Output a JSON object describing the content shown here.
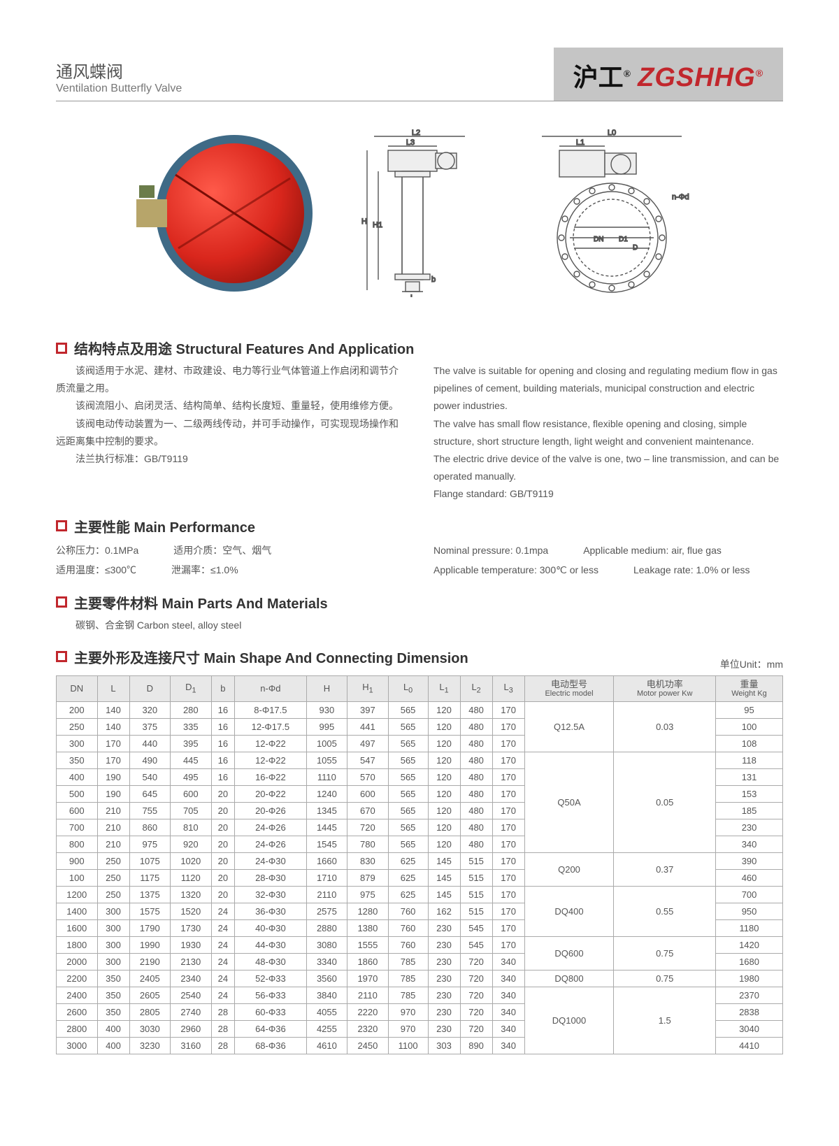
{
  "header": {
    "cn_title": "通风蝶阀",
    "en_title": "Ventilation Butterfly Valve",
    "logo_cn": "沪工",
    "logo_en": "ZGSHHG"
  },
  "sections": {
    "s1_title": "结构特点及用途 Structural Features And Application",
    "s2_title": "主要性能 Main Performance",
    "s3_title": "主要零件材料 Main Parts And Materials",
    "s4_title": "主要外形及连接尺寸 Main Shape And Connecting Dimension"
  },
  "s1": {
    "cn1": "该阀适用于水泥、建材、市政建设、电力等行业气体管道上作启闭和调节介质流量之用。",
    "cn2": "该阀流阻小、启闭灵活、结构简单、结构长度短、重量轻，使用维修方便。",
    "cn3": "该阀电动传动装置为一、二级两线传动，并可手动操作，可实现现场操作和远距离集中控制的要求。",
    "cn4": "法兰执行标准：GB/T9119",
    "en1": "The valve is suitable for opening and closing and regulating medium flow in gas pipelines of cement, building materials, municipal construction and electric power industries.",
    "en2": "The valve has small flow resistance, flexible opening and closing, simple structure, short structure length, light weight and convenient maintenance.",
    "en3": "The electric drive device of the valve is one, two – line transmission, and can be operated manually.",
    "en4": "Flange standard: GB/T9119"
  },
  "s2": {
    "cn_np": "公称压力：0.1MPa",
    "cn_med": "适用介质：空气、烟气",
    "cn_temp": "适用温度：≤300℃",
    "cn_leak": "泄漏率：≤1.0%",
    "en_np": "Nominal pressure: 0.1mpa",
    "en_med": "Applicable medium: air, flue gas",
    "en_temp": "Applicable temperature: 300℃ or less",
    "en_leak": "Leakage rate: 1.0% or less"
  },
  "s3": {
    "text": "碳钢、合金钢 Carbon steel, alloy steel"
  },
  "unit_label": "单位Unit：mm",
  "table": {
    "columns": [
      "DN",
      "L",
      "D",
      "D1",
      "b",
      "n-Φd",
      "H",
      "H1",
      "L0",
      "L1",
      "L2",
      "L3",
      "电动型号",
      "电机功率",
      "重量"
    ],
    "col_subs": [
      "",
      "",
      "",
      "",
      "",
      "",
      "",
      "",
      "",
      "",
      "",
      "",
      "Electric\nmodel",
      "Motor\npower Kw",
      "Weight\nKg"
    ],
    "rows": [
      [
        "200",
        "140",
        "320",
        "280",
        "16",
        "8-Φ17.5",
        "930",
        "397",
        "565",
        "120",
        "480",
        "170",
        null,
        null,
        "95"
      ],
      [
        "250",
        "140",
        "375",
        "335",
        "16",
        "12-Φ17.5",
        "995",
        "441",
        "565",
        "120",
        "480",
        "170",
        null,
        null,
        "100"
      ],
      [
        "300",
        "170",
        "440",
        "395",
        "16",
        "12-Φ22",
        "1005",
        "497",
        "565",
        "120",
        "480",
        "170",
        null,
        null,
        "108"
      ],
      [
        "350",
        "170",
        "490",
        "445",
        "16",
        "12-Φ22",
        "1055",
        "547",
        "565",
        "120",
        "480",
        "170",
        null,
        null,
        "118"
      ],
      [
        "400",
        "190",
        "540",
        "495",
        "16",
        "16-Φ22",
        "1110",
        "570",
        "565",
        "120",
        "480",
        "170",
        null,
        null,
        "131"
      ],
      [
        "500",
        "190",
        "645",
        "600",
        "20",
        "20-Φ22",
        "1240",
        "600",
        "565",
        "120",
        "480",
        "170",
        null,
        null,
        "153"
      ],
      [
        "600",
        "210",
        "755",
        "705",
        "20",
        "20-Φ26",
        "1345",
        "670",
        "565",
        "120",
        "480",
        "170",
        null,
        null,
        "185"
      ],
      [
        "700",
        "210",
        "860",
        "810",
        "20",
        "24-Φ26",
        "1445",
        "720",
        "565",
        "120",
        "480",
        "170",
        null,
        null,
        "230"
      ],
      [
        "800",
        "210",
        "975",
        "920",
        "20",
        "24-Φ26",
        "1545",
        "780",
        "565",
        "120",
        "480",
        "170",
        null,
        null,
        "340"
      ],
      [
        "900",
        "250",
        "1075",
        "1020",
        "20",
        "24-Φ30",
        "1660",
        "830",
        "625",
        "145",
        "515",
        "170",
        null,
        null,
        "390"
      ],
      [
        "100",
        "250",
        "1175",
        "1120",
        "20",
        "28-Φ30",
        "1710",
        "879",
        "625",
        "145",
        "515",
        "170",
        null,
        null,
        "460"
      ],
      [
        "1200",
        "250",
        "1375",
        "1320",
        "20",
        "32-Φ30",
        "2110",
        "975",
        "625",
        "145",
        "515",
        "170",
        null,
        null,
        "700"
      ],
      [
        "1400",
        "300",
        "1575",
        "1520",
        "24",
        "36-Φ30",
        "2575",
        "1280",
        "760",
        "162",
        "515",
        "170",
        null,
        null,
        "950"
      ],
      [
        "1600",
        "300",
        "1790",
        "1730",
        "24",
        "40-Φ30",
        "2880",
        "1380",
        "760",
        "230",
        "545",
        "170",
        null,
        null,
        "1180"
      ],
      [
        "1800",
        "300",
        "1990",
        "1930",
        "24",
        "44-Φ30",
        "3080",
        "1555",
        "760",
        "230",
        "545",
        "170",
        null,
        null,
        "1420"
      ],
      [
        "2000",
        "300",
        "2190",
        "2130",
        "24",
        "48-Φ30",
        "3340",
        "1860",
        "785",
        "230",
        "720",
        "340",
        null,
        null,
        "1680"
      ],
      [
        "2200",
        "350",
        "2405",
        "2340",
        "24",
        "52-Φ33",
        "3560",
        "1970",
        "785",
        "230",
        "720",
        "340",
        "DQ800",
        "0.75",
        "1980"
      ],
      [
        "2400",
        "350",
        "2605",
        "2540",
        "24",
        "56-Φ33",
        "3840",
        "2110",
        "785",
        "230",
        "720",
        "340",
        null,
        null,
        "2370"
      ],
      [
        "2600",
        "350",
        "2805",
        "2740",
        "28",
        "60-Φ33",
        "4055",
        "2220",
        "970",
        "230",
        "720",
        "340",
        null,
        null,
        "2838"
      ],
      [
        "2800",
        "400",
        "3030",
        "2960",
        "28",
        "64-Φ36",
        "4255",
        "2320",
        "970",
        "230",
        "720",
        "340",
        null,
        null,
        "3040"
      ],
      [
        "3000",
        "400",
        "3230",
        "3160",
        "28",
        "68-Φ36",
        "4610",
        "2450",
        "1100",
        "303",
        "890",
        "340",
        null,
        null,
        "4410"
      ]
    ],
    "model_groups": [
      {
        "start": 0,
        "span": 3,
        "model": "Q12.5A",
        "power": "0.03"
      },
      {
        "start": 3,
        "span": 6,
        "model": "Q50A",
        "power": "0.05"
      },
      {
        "start": 9,
        "span": 2,
        "model": "Q200",
        "power": "0.37"
      },
      {
        "start": 11,
        "span": 3,
        "model": "DQ400",
        "power": "0.55"
      },
      {
        "start": 14,
        "span": 2,
        "model": "DQ600",
        "power": "0.75"
      },
      {
        "start": 17,
        "span": 4,
        "model": "DQ1000",
        "power": "1.5"
      }
    ]
  },
  "colors": {
    "brand_red": "#c1272d",
    "logo_bg": "#c5c5c5",
    "text": "#555555",
    "border": "#aaaaaa",
    "th_bg": "#e8e8e8"
  }
}
